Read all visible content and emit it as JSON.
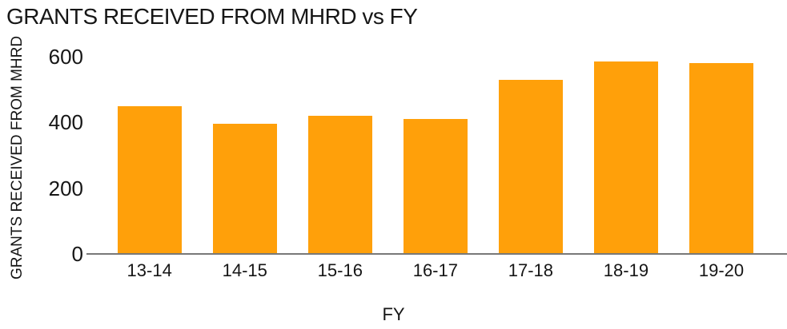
{
  "title": "GRANTS RECEIVED FROM MHRD vs FY",
  "colors": {
    "bar": "#FFA00A",
    "axis_line": "#787878",
    "text": "#161616",
    "background": "#ffffff"
  },
  "chart_data": {
    "type": "bar",
    "title": "GRANTS RECEIVED FROM MHRD vs FY",
    "xlabel": "FY",
    "ylabel": "GRANTS RECEIVED FROM MHRD",
    "categories": [
      "13-14",
      "14-15",
      "15-16",
      "16-17",
      "17-18",
      "18-19",
      "19-20"
    ],
    "values": [
      450,
      395,
      420,
      410,
      530,
      585,
      580
    ],
    "ylim": [
      0,
      600
    ],
    "yticks": [
      0,
      200,
      400,
      600
    ],
    "grid": false,
    "legend_position": "none",
    "bar_color": "#FFA00A"
  }
}
